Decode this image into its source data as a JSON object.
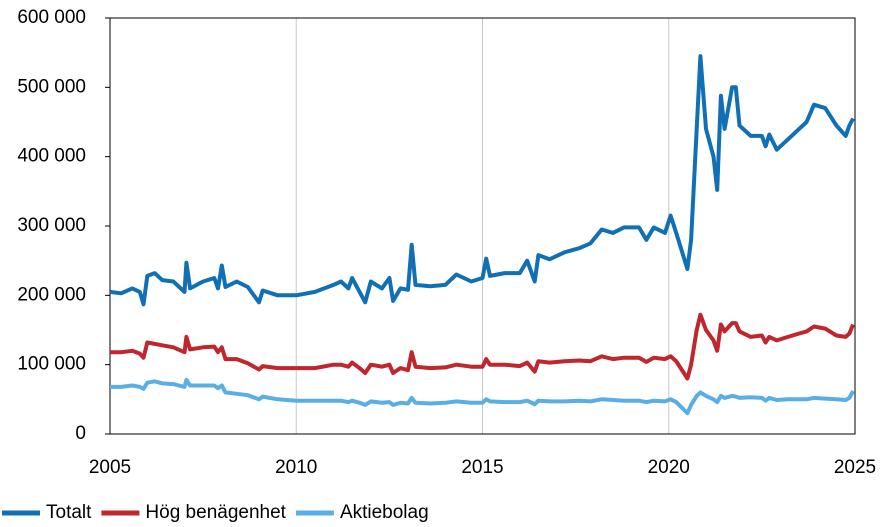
{
  "chart_data": {
    "type": "line",
    "x": [
      2005.0,
      2005.3,
      2005.6,
      2005.8,
      2005.9,
      2006.0,
      2006.2,
      2006.4,
      2006.7,
      2007.0,
      2007.05,
      2007.15,
      2007.5,
      2007.8,
      2007.9,
      2008.0,
      2008.1,
      2008.4,
      2008.7,
      2009.0,
      2009.1,
      2009.5,
      2010.0,
      2010.5,
      2011.0,
      2011.2,
      2011.4,
      2011.5,
      2011.7,
      2011.85,
      2012.0,
      2012.3,
      2012.5,
      2012.6,
      2012.8,
      2013.0,
      2013.1,
      2013.2,
      2013.6,
      2014.0,
      2014.3,
      2014.7,
      2015.0,
      2015.1,
      2015.2,
      2015.6,
      2016.0,
      2016.2,
      2016.4,
      2016.5,
      2016.8,
      2017.2,
      2017.6,
      2017.9,
      2018.2,
      2018.5,
      2018.8,
      2019.2,
      2019.4,
      2019.6,
      2019.9,
      2020.05,
      2020.2,
      2020.5,
      2020.6,
      2020.75,
      2020.85,
      2021.0,
      2021.2,
      2021.3,
      2021.4,
      2021.5,
      2021.7,
      2021.8,
      2021.9,
      2022.2,
      2022.5,
      2022.6,
      2022.7,
      2022.9,
      2023.2,
      2023.5,
      2023.7,
      2023.9,
      2024.2,
      2024.5,
      2024.75,
      2024.85,
      2024.95
    ],
    "series": [
      {
        "name": "Totalt",
        "color": "#1170b5",
        "values": [
          205000,
          203000,
          210000,
          205000,
          187000,
          228000,
          232000,
          222000,
          220000,
          205000,
          247000,
          210000,
          220000,
          225000,
          210000,
          243000,
          212000,
          220000,
          212000,
          190000,
          207000,
          200000,
          200000,
          205000,
          215000,
          220000,
          210000,
          225000,
          205000,
          190000,
          220000,
          210000,
          225000,
          192000,
          210000,
          208000,
          273000,
          215000,
          213000,
          215000,
          230000,
          220000,
          225000,
          253000,
          228000,
          232000,
          232000,
          250000,
          220000,
          258000,
          252000,
          262000,
          268000,
          275000,
          295000,
          290000,
          298000,
          298000,
          280000,
          298000,
          290000,
          315000,
          290000,
          238000,
          280000,
          440000,
          545000,
          440000,
          400000,
          352000,
          488000,
          440000,
          500000,
          500000,
          445000,
          430000,
          430000,
          415000,
          432000,
          410000,
          425000,
          440000,
          450000,
          475000,
          470000,
          445000,
          430000,
          445000,
          455000
        ]
      },
      {
        "name": "Hög benägenhet",
        "color": "#c0262d",
        "values": [
          118000,
          118000,
          120000,
          116000,
          110000,
          132000,
          130000,
          128000,
          125000,
          118000,
          140000,
          122000,
          125000,
          126000,
          118000,
          125000,
          108000,
          108000,
          102000,
          93000,
          98000,
          95000,
          95000,
          95000,
          100000,
          100000,
          97000,
          103000,
          95000,
          88000,
          100000,
          97000,
          100000,
          88000,
          95000,
          92000,
          118000,
          97000,
          95000,
          96000,
          100000,
          97000,
          97000,
          108000,
          100000,
          100000,
          98000,
          103000,
          90000,
          105000,
          103000,
          105000,
          106000,
          105000,
          112000,
          108000,
          110000,
          110000,
          104000,
          110000,
          108000,
          112000,
          105000,
          80000,
          100000,
          150000,
          172000,
          150000,
          135000,
          120000,
          158000,
          148000,
          160000,
          160000,
          148000,
          140000,
          142000,
          132000,
          140000,
          135000,
          140000,
          145000,
          148000,
          155000,
          152000,
          142000,
          140000,
          145000,
          158000
        ]
      },
      {
        "name": "Aktiebolag",
        "color": "#5aaee6",
        "values": [
          68000,
          68000,
          70000,
          68000,
          65000,
          74000,
          76000,
          73000,
          72000,
          68000,
          78000,
          70000,
          70000,
          70000,
          66000,
          70000,
          60000,
          58000,
          56000,
          50000,
          54000,
          50000,
          48000,
          48000,
          48000,
          48000,
          46000,
          48000,
          45000,
          42000,
          47000,
          45000,
          46000,
          42000,
          45000,
          44000,
          52000,
          45000,
          44000,
          45000,
          47000,
          45000,
          45000,
          50000,
          47000,
          46000,
          46000,
          48000,
          43000,
          48000,
          47000,
          47000,
          48000,
          47000,
          50000,
          49000,
          48000,
          48000,
          46000,
          48000,
          47000,
          50000,
          46000,
          30000,
          42000,
          55000,
          60000,
          55000,
          50000,
          46000,
          55000,
          52000,
          55000,
          54000,
          52000,
          53000,
          52000,
          48000,
          52000,
          49000,
          50000,
          50000,
          50000,
          52000,
          51000,
          50000,
          49000,
          52000,
          62000
        ]
      }
    ],
    "xlim": [
      2005,
      2025
    ],
    "xticks": [
      2005,
      2010,
      2015,
      2020,
      2025
    ],
    "ylim": [
      0,
      600000
    ],
    "yticks": [
      0,
      {
        "value": 100000,
        "label": "100 000"
      },
      {
        "value": 200000,
        "label": "200 000"
      },
      {
        "value": 300000,
        "label": "300 000"
      },
      {
        "value": 400000,
        "label": "400 000"
      },
      {
        "value": 500000,
        "label": "500 000"
      },
      {
        "value": 600000,
        "label": "600 000"
      }
    ],
    "grid": "x",
    "legend": "bottom-left"
  }
}
